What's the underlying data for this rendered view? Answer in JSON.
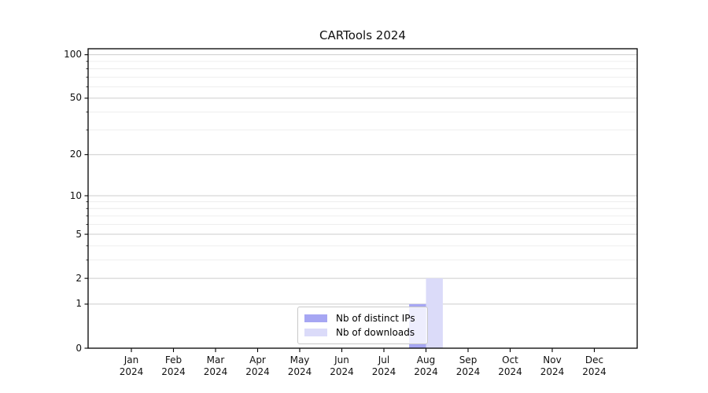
{
  "chart_data": {
    "type": "bar",
    "title": "CARTools 2024",
    "categories": [
      "Jan 2024",
      "Feb 2024",
      "Mar 2024",
      "Apr 2024",
      "May 2024",
      "Jun 2024",
      "Jul 2024",
      "Aug 2024",
      "Sep 2024",
      "Oct 2024",
      "Nov 2024",
      "Dec 2024"
    ],
    "category_month_labels": [
      "Jan",
      "Feb",
      "Mar",
      "Apr",
      "May",
      "Jun",
      "Jul",
      "Aug",
      "Sep",
      "Oct",
      "Nov",
      "Dec"
    ],
    "category_year_label": "2024",
    "series": [
      {
        "name": "Nb of distinct IPs",
        "color": "#a6a6f3",
        "values": [
          0,
          0,
          0,
          0,
          0,
          0,
          0,
          1,
          0,
          0,
          0,
          0
        ]
      },
      {
        "name": "Nb of downloads",
        "color": "#dbdbf9",
        "values": [
          0,
          0,
          0,
          0,
          0,
          0,
          0,
          2,
          0,
          0,
          0,
          0
        ]
      }
    ],
    "y_axis": {
      "scale": "log1p",
      "ticks": [
        0,
        1,
        2,
        5,
        10,
        20,
        50,
        100
      ],
      "minor_ticks": [
        3,
        4,
        6,
        7,
        8,
        9,
        30,
        40,
        60,
        70,
        80,
        90
      ],
      "range": [
        0,
        110
      ]
    },
    "xlabel": "",
    "ylabel": "",
    "grid": true,
    "legend": {
      "position": "lower-center",
      "entries": [
        "Nb of distinct IPs",
        "Nb of downloads"
      ]
    },
    "colors": {
      "bar_distinct_ips": "#a6a6f3",
      "bar_downloads": "#dbdbf9",
      "grid_major": "#cdcdcd",
      "grid_minor": "#ececec",
      "axis_frame": "#000000",
      "legend_border": "#c9c9c9"
    }
  }
}
